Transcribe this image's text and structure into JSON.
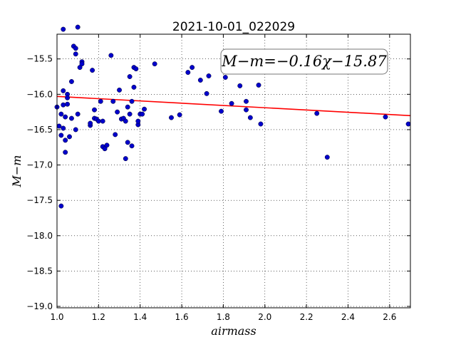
{
  "chart_data": {
    "type": "scatter",
    "title": "2021-10-01_022029",
    "xlabel": "airmass",
    "ylabel": "M−m",
    "annotation": "M−m=−0.16χ−15.87",
    "xlim": [
      1.0,
      2.7
    ],
    "ylim": [
      -19.02,
      -15.15
    ],
    "y_inverted": true,
    "grid": true,
    "xticks": [
      1.0,
      1.2,
      1.4,
      1.6,
      1.8,
      2.0,
      2.2,
      2.4,
      2.6
    ],
    "xtick_labels": [
      "1.0",
      "1.2",
      "1.4",
      "1.6",
      "1.8",
      "2.0",
      "2.2",
      "2.4",
      "2.6"
    ],
    "yticks": [
      -15.5,
      -16.0,
      -16.5,
      -17.0,
      -17.5,
      -18.0,
      -18.5,
      -19.0
    ],
    "ytick_labels": [
      "−15.5",
      "−16.0",
      "−16.5",
      "−17.0",
      "−17.5",
      "−18.0",
      "−18.5",
      "−19.0"
    ],
    "fit": {
      "slope": -0.16,
      "intercept": -15.87,
      "color": "#ff0000"
    },
    "marker_color": "#0000cc",
    "points": [
      [
        1.0,
        -16.18
      ],
      [
        1.01,
        -16.45
      ],
      [
        1.02,
        -16.28
      ],
      [
        1.02,
        -16.58
      ],
      [
        1.02,
        -17.58
      ],
      [
        1.03,
        -15.95
      ],
      [
        1.03,
        -16.15
      ],
      [
        1.03,
        -16.48
      ],
      [
        1.03,
        -15.08
      ],
      [
        1.04,
        -16.32
      ],
      [
        1.04,
        -16.82
      ],
      [
        1.04,
        -16.65
      ],
      [
        1.05,
        -16.0
      ],
      [
        1.05,
        -16.05
      ],
      [
        1.05,
        -16.14
      ],
      [
        1.06,
        -16.6
      ],
      [
        1.07,
        -16.34
      ],
      [
        1.07,
        -15.82
      ],
      [
        1.08,
        -15.32
      ],
      [
        1.09,
        -15.35
      ],
      [
        1.09,
        -15.43
      ],
      [
        1.09,
        -16.5
      ],
      [
        1.1,
        -16.28
      ],
      [
        1.1,
        -15.05
      ],
      [
        1.11,
        -15.62
      ],
      [
        1.12,
        -15.54
      ],
      [
        1.12,
        -15.57
      ],
      [
        1.16,
        -16.44
      ],
      [
        1.16,
        -16.41
      ],
      [
        1.17,
        -15.66
      ],
      [
        1.18,
        -16.22
      ],
      [
        1.18,
        -16.34
      ],
      [
        1.19,
        -16.35
      ],
      [
        1.2,
        -16.38
      ],
      [
        1.21,
        -16.1
      ],
      [
        1.22,
        -16.38
      ],
      [
        1.22,
        -16.74
      ],
      [
        1.23,
        -16.77
      ],
      [
        1.24,
        -16.72
      ],
      [
        1.26,
        -15.45
      ],
      [
        1.27,
        -16.1
      ],
      [
        1.28,
        -16.57
      ],
      [
        1.29,
        -16.25
      ],
      [
        1.3,
        -15.94
      ],
      [
        1.31,
        -16.35
      ],
      [
        1.32,
        -16.34
      ],
      [
        1.33,
        -16.91
      ],
      [
        1.33,
        -16.38
      ],
      [
        1.34,
        -16.68
      ],
      [
        1.34,
        -16.18
      ],
      [
        1.35,
        -16.28
      ],
      [
        1.35,
        -15.75
      ],
      [
        1.36,
        -16.73
      ],
      [
        1.36,
        -16.1
      ],
      [
        1.37,
        -15.62
      ],
      [
        1.37,
        -15.9
      ],
      [
        1.38,
        -15.64
      ],
      [
        1.39,
        -16.43
      ],
      [
        1.39,
        -16.38
      ],
      [
        1.4,
        -16.28
      ],
      [
        1.41,
        -16.28
      ],
      [
        1.42,
        -16.21
      ],
      [
        1.47,
        -15.57
      ],
      [
        1.55,
        -16.33
      ],
      [
        1.59,
        -16.29
      ],
      [
        1.63,
        -15.69
      ],
      [
        1.65,
        -15.62
      ],
      [
        1.69,
        -15.8
      ],
      [
        1.72,
        -15.99
      ],
      [
        1.73,
        -15.74
      ],
      [
        1.79,
        -16.24
      ],
      [
        1.81,
        -15.76
      ],
      [
        1.84,
        -16.13
      ],
      [
        1.88,
        -15.88
      ],
      [
        1.91,
        -16.22
      ],
      [
        1.91,
        -16.1
      ],
      [
        1.93,
        -16.33
      ],
      [
        1.97,
        -15.87
      ],
      [
        1.98,
        -16.42
      ],
      [
        2.25,
        -16.27
      ],
      [
        2.3,
        -16.89
      ],
      [
        2.58,
        -16.32
      ],
      [
        2.69,
        -16.42
      ]
    ]
  }
}
